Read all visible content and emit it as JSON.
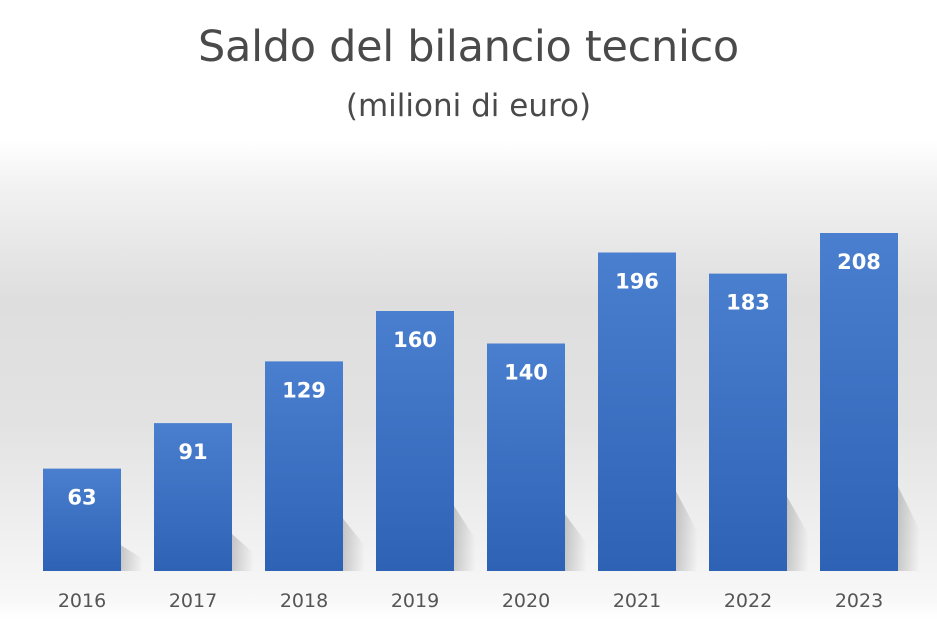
{
  "chart_data": {
    "type": "bar",
    "title": "Saldo del bilancio tecnico",
    "subtitle": "(milioni di euro)",
    "xlabel": "",
    "ylabel": "",
    "categories": [
      "2016",
      "2017",
      "2018",
      "2019",
      "2020",
      "2021",
      "2022",
      "2023"
    ],
    "values": [
      63,
      91,
      129,
      160,
      140,
      196,
      183,
      208
    ],
    "data_labels": [
      "63",
      "91",
      "129",
      "160",
      "140",
      "196",
      "183",
      "208"
    ],
    "ylim": [
      0,
      208
    ],
    "grid": false,
    "legend": "none",
    "bar_color": "#2e62b5",
    "bar_color_light": "#4a7fcf"
  }
}
